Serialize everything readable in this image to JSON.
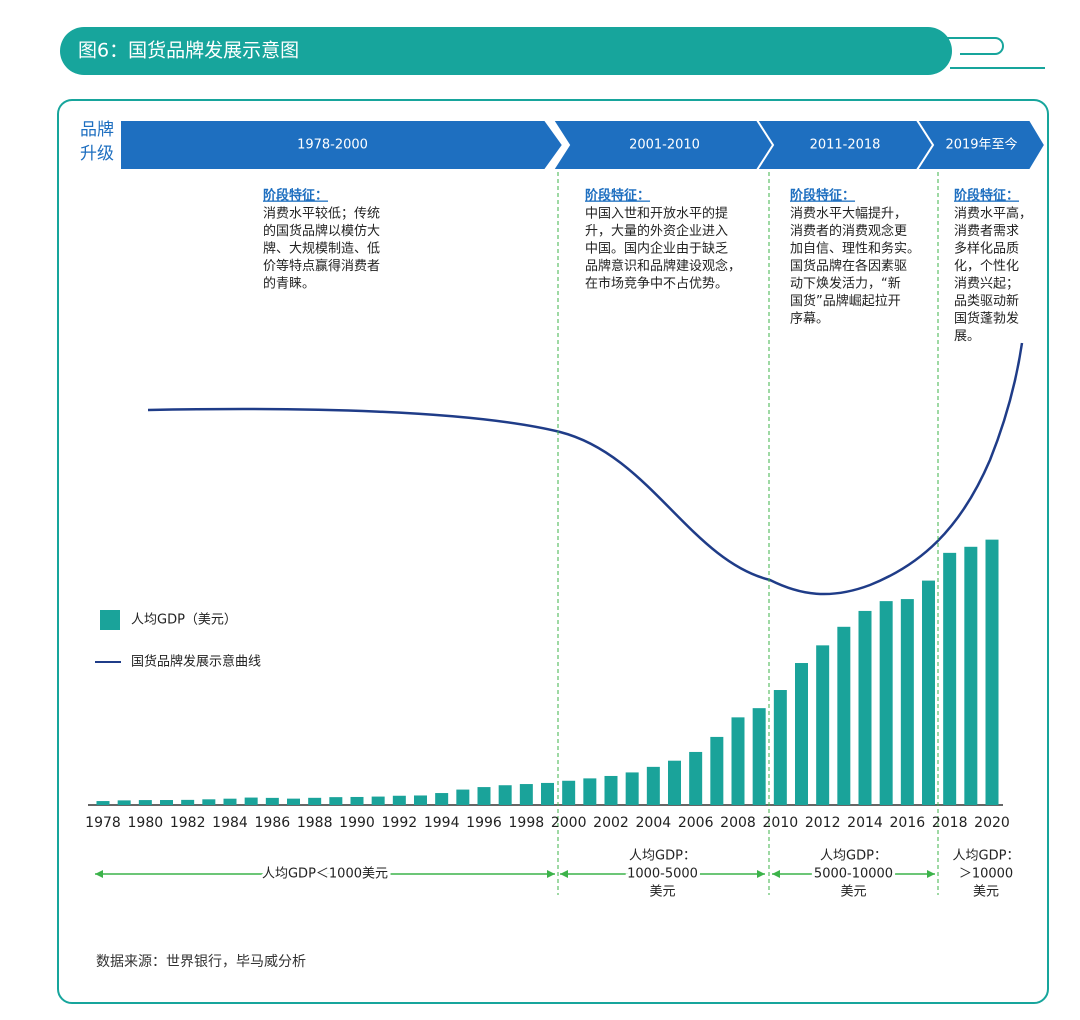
{
  "header": {
    "title": "图6：国货品牌发展示意图"
  },
  "stages": {
    "label": [
      "品牌",
      "升级"
    ],
    "heading": "阶段特征：",
    "items": [
      {
        "period": "1978-2000",
        "lines": [
          "消费水平较低；传统",
          "的国货品牌以模仿大",
          "牌、大规模制造、低",
          "价等特点赢得消费者",
          "的青睐。"
        ],
        "gdp_range": [
          "人均GDP＜1000美元"
        ]
      },
      {
        "period": "2001-2010",
        "lines": [
          "中国入世和开放水平的提",
          "升，大量的外资企业进入",
          "中国。国内企业由于缺乏",
          "品牌意识和品牌建设观念，",
          "在市场竞争中不占优势。"
        ],
        "gdp_range": [
          "人均GDP：",
          "1000-5000",
          "美元"
        ]
      },
      {
        "period": "2011-2018",
        "lines": [
          "消费水平大幅提升，",
          "消费者的消费观念更",
          "加自信、理性和务实。",
          "国货品牌在各因素驱",
          "动下焕发活力，“新",
          "国货”品牌崛起拉开",
          "序幕。"
        ],
        "gdp_range": [
          "人均GDP：",
          "5000-10000",
          "美元"
        ]
      },
      {
        "period": "2019年至今",
        "lines": [
          "消费水平高，",
          "消费者需求",
          "多样化品质",
          "化，个性化",
          "消费兴起；",
          "品类驱动新",
          "国货蓬勃发",
          "展。"
        ],
        "gdp_range": [
          "人均GDP：",
          "＞10000",
          "美元"
        ]
      }
    ]
  },
  "chart_data": {
    "type": "bar",
    "categories": [
      1978,
      null,
      1980,
      null,
      1982,
      null,
      1984,
      null,
      1986,
      null,
      1988,
      null,
      1990,
      null,
      1992,
      null,
      1994,
      null,
      1996,
      null,
      1998,
      null,
      2000,
      null,
      2002,
      null,
      2004,
      null,
      2006,
      null,
      2008,
      null,
      2010,
      null,
      2012,
      null,
      2014,
      null,
      2016,
      null,
      2018,
      null,
      2020
    ],
    "series": [
      {
        "name": "人均GDP（美元）",
        "color": "#1aa39a",
        "values": [
          156,
          183,
          195,
          197,
          203,
          225,
          250,
          294,
          282,
          252,
          284,
          311,
          318,
          333,
          366,
          377,
          473,
          610,
          709,
          782,
          829,
          873,
          959,
          1053,
          1149,
          1289,
          1509,
          1753,
          2099,
          2694,
          3468,
          3832,
          4550,
          5618,
          6317,
          7051,
          7679,
          8067,
          8148,
          8879,
          9977,
          10217,
          10500
        ]
      }
    ],
    "curve": {
      "name": "国货品牌发展示意曲线",
      "color": "#1f3c88"
    },
    "ylim": [
      0,
      11000
    ]
  },
  "source": "数据来源：世界银行，毕马威分析"
}
